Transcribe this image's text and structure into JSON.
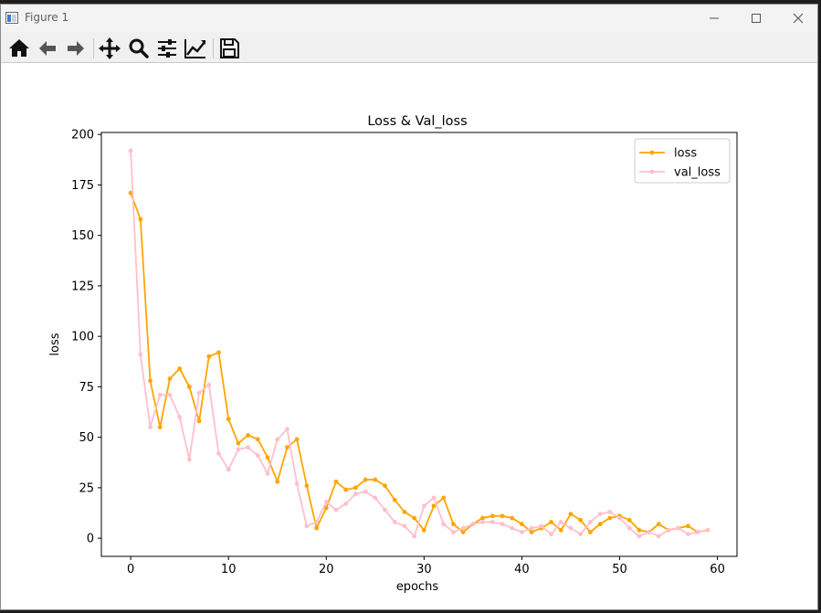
{
  "window": {
    "title": "Figure 1"
  },
  "toolbar": {
    "icons": [
      "home-icon",
      "back-arrow-icon",
      "forward-arrow-icon",
      "pan-icon",
      "zoom-icon",
      "configure-subplots-icon",
      "edit-axis-icon",
      "save-icon"
    ]
  },
  "colors": {
    "loss": "#ffa500",
    "val_loss": "#ffc0cb",
    "toolbar_icon": "#111111"
  },
  "chart_data": {
    "type": "line",
    "title": "Loss & Val_loss",
    "xlabel": "epochs",
    "ylabel": "loss",
    "xlim": [
      -3,
      62
    ],
    "ylim": [
      -9,
      201
    ],
    "xticks": [
      0,
      10,
      20,
      30,
      40,
      50,
      60
    ],
    "yticks": [
      0,
      25,
      50,
      75,
      100,
      125,
      150,
      175,
      200
    ],
    "grid": false,
    "legend_position": "upper-right",
    "series": [
      {
        "name": "loss",
        "color": "#ffa500",
        "marker": "circle",
        "values": [
          171,
          158,
          78,
          55,
          79,
          84,
          75,
          58,
          90,
          92,
          59,
          47,
          51,
          49,
          40,
          28,
          45,
          49,
          26,
          5,
          15,
          28,
          24,
          25,
          29,
          29,
          26,
          19,
          13,
          10,
          4,
          16,
          20,
          7,
          3,
          7,
          10,
          11,
          11,
          10,
          7,
          3,
          5,
          8,
          4,
          12,
          9,
          3,
          7,
          10,
          11,
          9,
          4,
          3,
          7,
          4,
          5,
          6,
          3,
          4
        ]
      },
      {
        "name": "val_loss",
        "color": "#ffc0cb",
        "marker": "circle",
        "values": [
          192,
          91,
          55,
          71,
          71,
          60,
          39,
          72,
          76,
          42,
          34,
          44,
          45,
          41,
          32,
          49,
          54,
          27,
          6,
          8,
          18,
          14,
          17,
          22,
          23,
          20,
          14,
          8,
          6,
          1,
          16,
          20,
          7,
          3,
          5,
          7,
          8,
          8,
          7,
          5,
          3,
          5,
          6,
          2,
          8,
          5,
          2,
          8,
          12,
          13,
          10,
          5,
          1,
          3,
          1,
          4,
          5,
          2,
          3,
          4
        ]
      }
    ]
  }
}
